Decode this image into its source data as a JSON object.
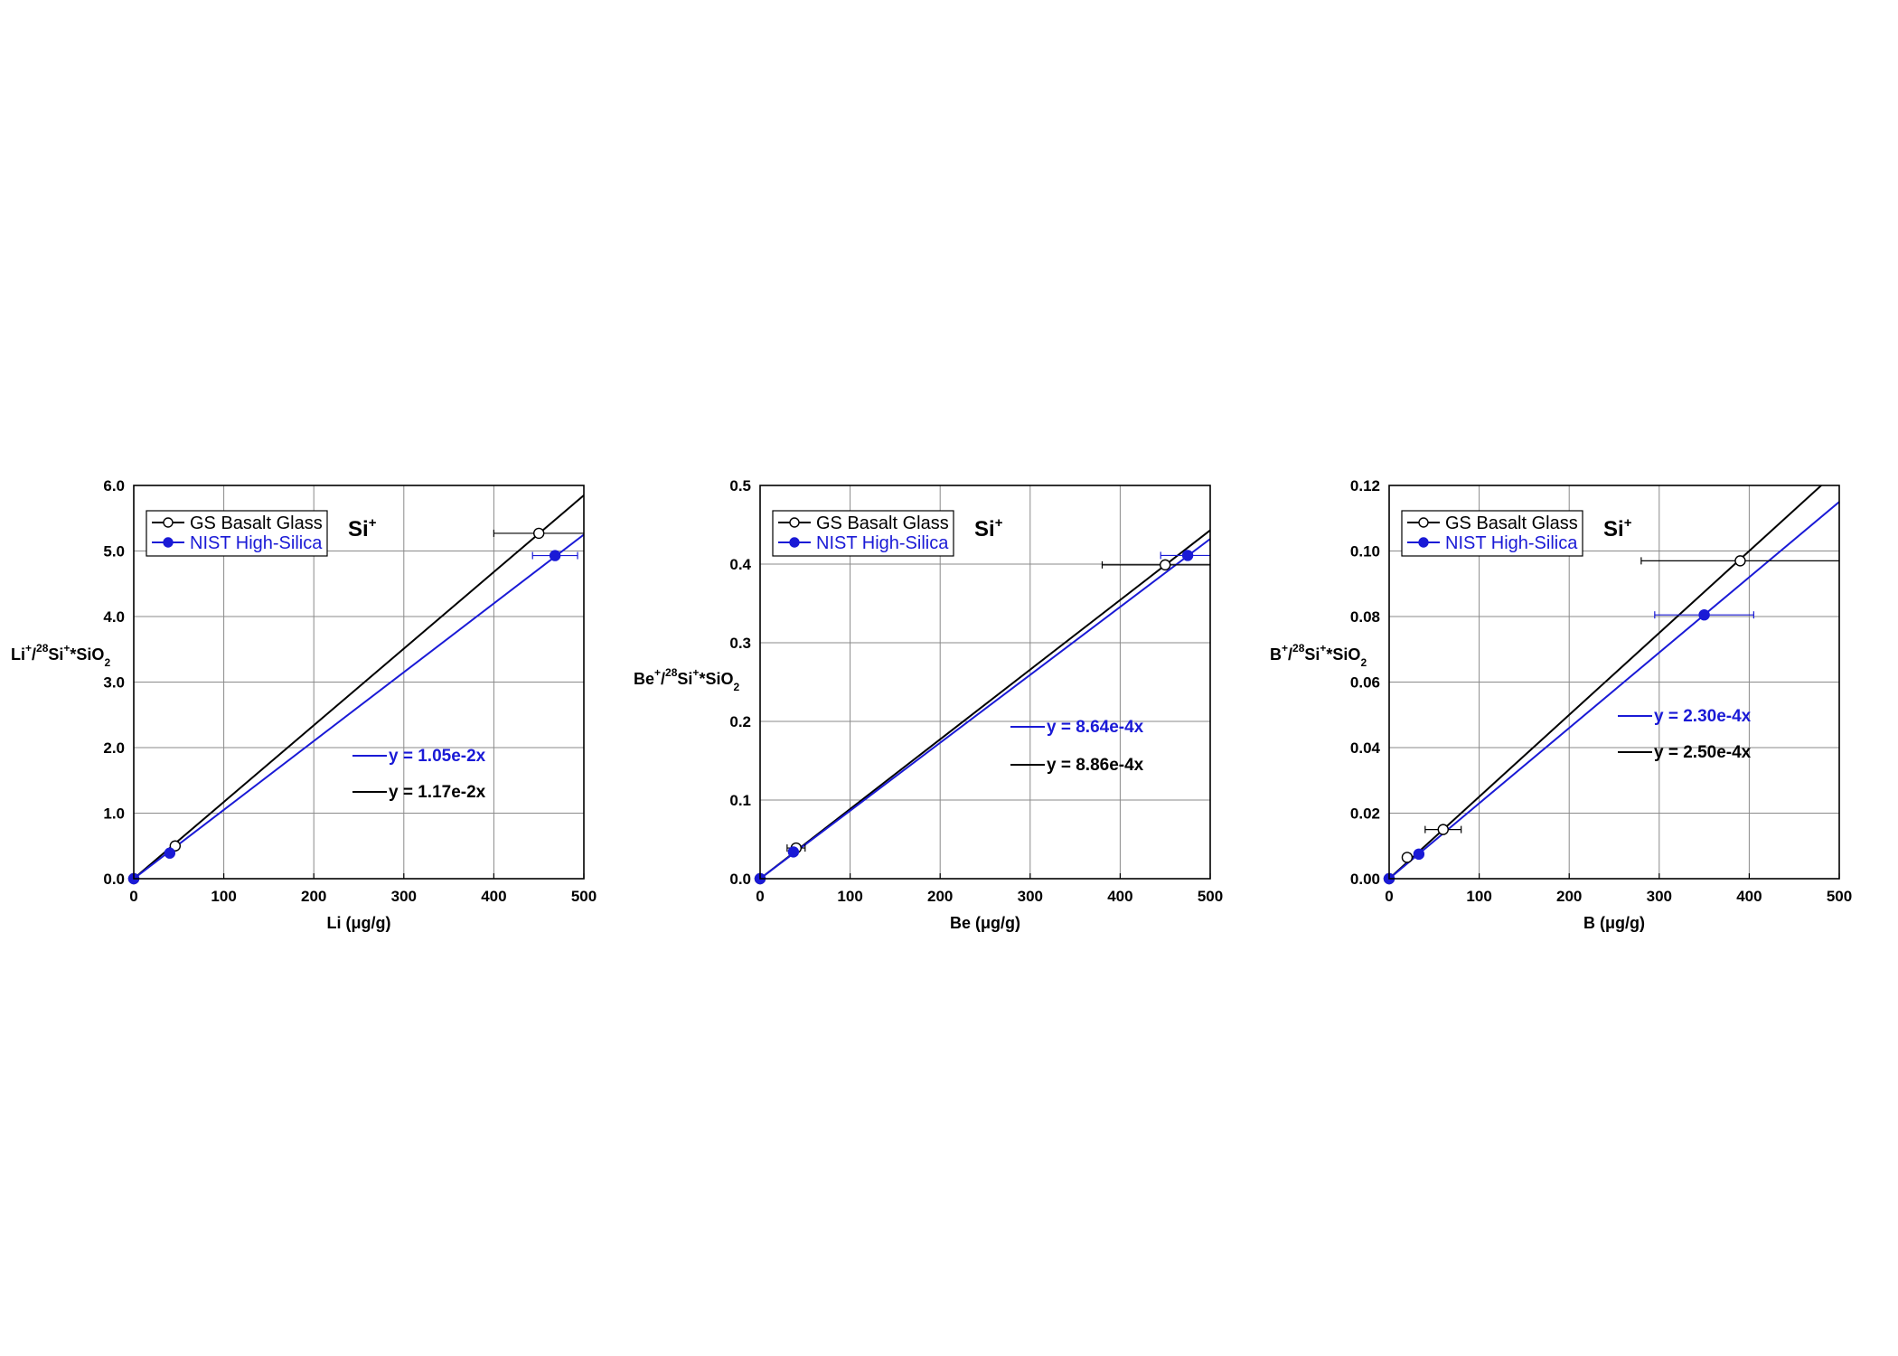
{
  "colors": {
    "basalt": "#000000",
    "nist": "#1a1ad6"
  },
  "chart_data": [
    {
      "type": "scatter",
      "xlabel_main": "Li",
      "xlabel_unit": "(μg/g)",
      "ylabel": {
        "base": "Li",
        "sup1": "+",
        "mid": "/",
        "sup2": "28",
        "mid2": "Si",
        "sup3": "+",
        "tail": "*SiO",
        "sub": "2"
      },
      "ion_label": {
        "base": "Si",
        "sup": "+"
      },
      "xlim": [
        0,
        500
      ],
      "ylim": [
        0,
        6
      ],
      "x_ticks": [
        0,
        100,
        200,
        300,
        400,
        500
      ],
      "x_tick_labels": [
        "0",
        "100",
        "200",
        "300",
        "400",
        "500"
      ],
      "y_ticks": [
        0,
        1,
        2,
        3,
        4,
        5,
        6
      ],
      "y_tick_labels": [
        "0.0",
        "1.0",
        "2.0",
        "3.0",
        "4.0",
        "5.0",
        "6.0"
      ],
      "grid": true,
      "legend_position": "top-left",
      "series": [
        {
          "name": "GS Basalt Glass",
          "color_key": "basalt",
          "marker": "open-circle",
          "slope": 0.0117,
          "equation": "y = 1.17e-2x",
          "points": [
            {
              "x": 0,
              "y": 0,
              "xerr": 0
            },
            {
              "x": 46,
              "y": 0.5,
              "xerr": 0
            },
            {
              "x": 450,
              "y": 5.27,
              "xerr": 50
            }
          ]
        },
        {
          "name": "NIST High-Silica",
          "color_key": "nist",
          "marker": "filled-circle",
          "slope": 0.0105,
          "equation": "y = 1.05e-2x",
          "points": [
            {
              "x": 0,
              "y": 0,
              "xerr": 0
            },
            {
              "x": 40,
              "y": 0.39,
              "xerr": 0
            },
            {
              "x": 468,
              "y": 4.93,
              "xerr": 25
            }
          ]
        }
      ]
    },
    {
      "type": "scatter",
      "xlabel_main": "Be",
      "xlabel_unit": "(μg/g)",
      "ylabel": {
        "base": "Be",
        "sup1": "+",
        "mid": "/",
        "sup2": "28",
        "mid2": "Si",
        "sup3": "+",
        "tail": "*SiO",
        "sub": "2"
      },
      "ion_label": {
        "base": "Si",
        "sup": "+"
      },
      "xlim": [
        0,
        500
      ],
      "ylim": [
        0,
        0.5
      ],
      "x_ticks": [
        0,
        100,
        200,
        300,
        400,
        500
      ],
      "x_tick_labels": [
        "0",
        "100",
        "200",
        "300",
        "400",
        "500"
      ],
      "y_ticks": [
        0,
        0.1,
        0.2,
        0.3,
        0.4,
        0.5
      ],
      "y_tick_labels": [
        "0.0",
        "0.1",
        "0.2",
        "0.3",
        "0.4",
        "0.5"
      ],
      "grid": true,
      "legend_position": "top-left",
      "series": [
        {
          "name": "GS Basalt Glass",
          "color_key": "basalt",
          "marker": "open-circle",
          "slope": 0.000886,
          "equation": "y = 8.86e-4x",
          "points": [
            {
              "x": 0,
              "y": 0,
              "xerr": 0
            },
            {
              "x": 40,
              "y": 0.039,
              "xerr": 10
            },
            {
              "x": 450,
              "y": 0.399,
              "xerr": 70
            }
          ]
        },
        {
          "name": "NIST High-Silica",
          "color_key": "nist",
          "marker": "filled-circle",
          "slope": 0.000864,
          "equation": "y = 8.64e-4x",
          "points": [
            {
              "x": 0,
              "y": 0,
              "xerr": 0
            },
            {
              "x": 37,
              "y": 0.034,
              "xerr": 0
            },
            {
              "x": 475,
              "y": 0.411,
              "xerr": 30
            }
          ]
        }
      ]
    },
    {
      "type": "scatter",
      "xlabel_main": "B",
      "xlabel_unit": "(μg/g)",
      "ylabel": {
        "base": "B",
        "sup1": "+",
        "mid": "/",
        "sup2": "28",
        "mid2": "Si",
        "sup3": "+",
        "tail": "*SiO",
        "sub": "2"
      },
      "ion_label": {
        "base": "Si",
        "sup": "+"
      },
      "xlim": [
        0,
        500
      ],
      "ylim": [
        0,
        0.12
      ],
      "x_ticks": [
        0,
        100,
        200,
        300,
        400,
        500
      ],
      "x_tick_labels": [
        "0",
        "100",
        "200",
        "300",
        "400",
        "500"
      ],
      "y_ticks": [
        0,
        0.02,
        0.04,
        0.06,
        0.08,
        0.1,
        0.12
      ],
      "y_tick_labels": [
        "0.00",
        "0.02",
        "0.04",
        "0.06",
        "0.08",
        "0.10",
        "0.12"
      ],
      "grid": true,
      "legend_position": "top-left",
      "series": [
        {
          "name": "GS Basalt Glass",
          "color_key": "basalt",
          "marker": "open-circle",
          "slope": 0.00025,
          "equation": "y = 2.50e-4x",
          "points": [
            {
              "x": 0,
              "y": 0,
              "xerr": 0
            },
            {
              "x": 20,
              "y": 0.0065,
              "xerr": 0
            },
            {
              "x": 60,
              "y": 0.015,
              "xerr": 20
            },
            {
              "x": 390,
              "y": 0.097,
              "xerr": 110
            }
          ]
        },
        {
          "name": "NIST High-Silica",
          "color_key": "nist",
          "marker": "filled-circle",
          "slope": 0.00023,
          "equation": "y = 2.30e-4x",
          "points": [
            {
              "x": 0,
              "y": 0,
              "xerr": 0
            },
            {
              "x": 33,
              "y": 0.0075,
              "xerr": 0
            },
            {
              "x": 350,
              "y": 0.0805,
              "xerr": 55
            }
          ]
        }
      ]
    }
  ]
}
